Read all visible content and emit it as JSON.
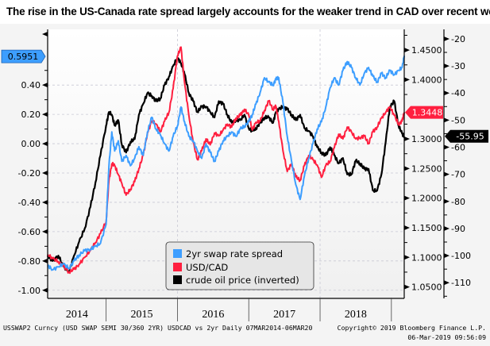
{
  "title": "The rise in the US-Canada rate spread largely accounts for the weaker trend in CAD over recent wee",
  "footer": {
    "left": "USSWAP2 Curncy (USD SWAP SEMI 30/360 2YR) USDCAD vs 2yr  Daily 07MAR2014-06MAR20",
    "copyright": "Copyright© 2019 Bloomberg Finance L.P.",
    "timestamp": "06-Mar-2019 09:56:09"
  },
  "chart_data": {
    "type": "line",
    "title": "The rise in the US-Canada rate spread largely accounts for the weaker trend in CAD over recent wee",
    "x_range": [
      2014.18,
      2019.18
    ],
    "x_tick_labels": [
      "2014",
      "2015",
      "2016",
      "2017",
      "2018"
    ],
    "grid": true,
    "legend_position": "bottom-center",
    "axes": {
      "left": {
        "label": "2yr swap rate spread",
        "ylim": [
          -1.05,
          0.78
        ],
        "ticks": [
          "0.40",
          "0.20",
          "0.00",
          "-0.20",
          "-0.40",
          "-0.60",
          "-0.80",
          "-1.00"
        ],
        "tick_values": [
          0.4,
          0.2,
          0.0,
          -0.2,
          -0.4,
          -0.6,
          -0.8,
          -1.0
        ]
      },
      "middle": {
        "label": "USD/CAD",
        "ylim": [
          1.032,
          1.485
        ],
        "ticks": [
          "1.4500",
          "1.4000",
          "1.3000",
          "1.2500",
          "1.2000",
          "1.1500",
          "1.1000",
          "1.0500"
        ],
        "tick_values": [
          1.45,
          1.4,
          1.3,
          1.25,
          1.2,
          1.15,
          1.1,
          1.05
        ]
      },
      "right": {
        "label": "crude oil price (inverted)",
        "ylim": [
          -115.5,
          -16.5
        ],
        "ticks": [
          "-20",
          "-30",
          "-40",
          "-50",
          "-60",
          "-70",
          "-80",
          "-90",
          "-100",
          "-110"
        ],
        "tick_values": [
          -20,
          -30,
          -40,
          -50,
          -60,
          -70,
          -80,
          -90,
          -100,
          -110
        ]
      }
    },
    "last_value_labels": [
      {
        "series": "2yr swap rate spread",
        "value": "0.5951",
        "color": "#3d9eff",
        "axis": "left"
      },
      {
        "series": "USD/CAD",
        "value": "1.3448",
        "color": "#ff1f3f",
        "axis": "middle"
      },
      {
        "series": "crude oil price (inverted)",
        "value": "-55.95",
        "color": "#000000",
        "axis": "right"
      }
    ],
    "series": [
      {
        "name": "2yr swap rate spread",
        "color": "#3d9eff",
        "axis": "left",
        "x": [
          2014.18,
          2014.25,
          2014.33,
          2014.4,
          2014.48,
          2014.55,
          2014.62,
          2014.7,
          2014.78,
          2014.85,
          2014.92,
          2015.0,
          2015.04,
          2015.08,
          2015.12,
          2015.17,
          2015.22,
          2015.28,
          2015.34,
          2015.4,
          2015.46,
          2015.52,
          2015.58,
          2015.64,
          2015.7,
          2015.76,
          2015.82,
          2015.88,
          2015.94,
          2016.0,
          2016.05,
          2016.1,
          2016.16,
          2016.22,
          2016.28,
          2016.34,
          2016.4,
          2016.46,
          2016.52,
          2016.58,
          2016.64,
          2016.7,
          2016.76,
          2016.82,
          2016.88,
          2016.94,
          2017.0,
          2017.05,
          2017.1,
          2017.16,
          2017.22,
          2017.28,
          2017.34,
          2017.38,
          2017.42,
          2017.48,
          2017.54,
          2017.6,
          2017.66,
          2017.72,
          2017.78,
          2017.84,
          2017.9,
          2017.96,
          2018.02,
          2018.08,
          2018.14,
          2018.2,
          2018.26,
          2018.32,
          2018.38,
          2018.44,
          2018.5,
          2018.56,
          2018.62,
          2018.68,
          2018.74,
          2018.8,
          2018.86,
          2018.92,
          2018.98,
          2019.04,
          2019.1,
          2019.15,
          2019.18
        ],
        "values": [
          -0.83,
          -0.86,
          -0.84,
          -0.82,
          -0.85,
          -0.8,
          -0.76,
          -0.73,
          -0.72,
          -0.7,
          -0.68,
          -0.55,
          -0.15,
          0.08,
          -0.05,
          0.02,
          -0.12,
          -0.08,
          -0.15,
          -0.1,
          -0.02,
          -0.08,
          0.08,
          0.18,
          0.1,
          0.06,
          0.0,
          -0.05,
          0.05,
          0.12,
          0.25,
          0.15,
          0.05,
          0.02,
          -0.05,
          -0.1,
          0.0,
          -0.06,
          -0.12,
          -0.05,
          0.02,
          0.05,
          0.08,
          0.05,
          0.1,
          0.12,
          0.15,
          0.2,
          0.27,
          0.35,
          0.45,
          0.42,
          0.4,
          0.44,
          0.45,
          0.28,
          0.05,
          -0.12,
          -0.28,
          -0.38,
          -0.22,
          -0.1,
          0.0,
          0.1,
          0.15,
          0.25,
          0.38,
          0.45,
          0.4,
          0.5,
          0.56,
          0.52,
          0.45,
          0.4,
          0.48,
          0.52,
          0.46,
          0.42,
          0.48,
          0.45,
          0.5,
          0.47,
          0.5,
          0.52,
          0.6
        ]
      },
      {
        "name": "USD/CAD",
        "color": "#ff1f3f",
        "axis": "middle",
        "x": [
          2014.18,
          2014.25,
          2014.33,
          2014.4,
          2014.48,
          2014.55,
          2014.62,
          2014.7,
          2014.78,
          2014.85,
          2014.92,
          2015.0,
          2015.04,
          2015.08,
          2015.12,
          2015.17,
          2015.22,
          2015.28,
          2015.34,
          2015.4,
          2015.46,
          2015.52,
          2015.58,
          2015.64,
          2015.7,
          2015.76,
          2015.82,
          2015.88,
          2015.94,
          2016.0,
          2016.05,
          2016.1,
          2016.16,
          2016.22,
          2016.28,
          2016.34,
          2016.4,
          2016.46,
          2016.52,
          2016.58,
          2016.64,
          2016.7,
          2016.76,
          2016.82,
          2016.88,
          2016.94,
          2017.0,
          2017.05,
          2017.1,
          2017.16,
          2017.22,
          2017.28,
          2017.34,
          2017.38,
          2017.42,
          2017.48,
          2017.54,
          2017.6,
          2017.66,
          2017.72,
          2017.78,
          2017.84,
          2017.9,
          2017.96,
          2018.02,
          2018.08,
          2018.14,
          2018.2,
          2018.26,
          2018.32,
          2018.38,
          2018.44,
          2018.5,
          2018.56,
          2018.62,
          2018.68,
          2018.74,
          2018.8,
          2018.86,
          2018.92,
          2018.98,
          2019.04,
          2019.1,
          2019.15,
          2019.18
        ],
        "values": [
          1.105,
          1.098,
          1.093,
          1.085,
          1.075,
          1.08,
          1.088,
          1.1,
          1.112,
          1.125,
          1.14,
          1.16,
          1.23,
          1.258,
          1.255,
          1.24,
          1.225,
          1.205,
          1.215,
          1.228,
          1.25,
          1.272,
          1.31,
          1.33,
          1.325,
          1.312,
          1.33,
          1.345,
          1.385,
          1.44,
          1.455,
          1.395,
          1.34,
          1.295,
          1.265,
          1.28,
          1.3,
          1.29,
          1.31,
          1.305,
          1.315,
          1.325,
          1.32,
          1.335,
          1.34,
          1.35,
          1.34,
          1.315,
          1.328,
          1.33,
          1.348,
          1.364,
          1.35,
          1.355,
          1.33,
          1.28,
          1.245,
          1.258,
          1.236,
          1.23,
          1.255,
          1.272,
          1.265,
          1.256,
          1.235,
          1.255,
          1.262,
          1.285,
          1.308,
          1.3,
          1.32,
          1.312,
          1.3,
          1.302,
          1.305,
          1.292,
          1.312,
          1.32,
          1.335,
          1.345,
          1.354,
          1.34,
          1.325,
          1.33,
          1.345
        ]
      },
      {
        "name": "crude oil price (inverted)",
        "color": "#000000",
        "axis": "right",
        "x": [
          2014.18,
          2014.25,
          2014.33,
          2014.4,
          2014.48,
          2014.55,
          2014.62,
          2014.7,
          2014.78,
          2014.85,
          2014.92,
          2015.0,
          2015.04,
          2015.08,
          2015.12,
          2015.17,
          2015.22,
          2015.28,
          2015.34,
          2015.4,
          2015.46,
          2015.52,
          2015.58,
          2015.64,
          2015.7,
          2015.76,
          2015.82,
          2015.88,
          2015.94,
          2016.0,
          2016.05,
          2016.1,
          2016.16,
          2016.22,
          2016.28,
          2016.34,
          2016.4,
          2016.46,
          2016.52,
          2016.58,
          2016.64,
          2016.7,
          2016.76,
          2016.82,
          2016.88,
          2016.94,
          2017.0,
          2017.05,
          2017.1,
          2017.16,
          2017.22,
          2017.28,
          2017.34,
          2017.38,
          2017.42,
          2017.48,
          2017.54,
          2017.6,
          2017.66,
          2017.72,
          2017.78,
          2017.84,
          2017.9,
          2017.96,
          2018.02,
          2018.08,
          2018.14,
          2018.2,
          2018.26,
          2018.32,
          2018.38,
          2018.44,
          2018.5,
          2018.56,
          2018.62,
          2018.68,
          2018.74,
          2018.8,
          2018.86,
          2018.92,
          2018.98,
          2019.04,
          2019.1,
          2019.15,
          2019.18
        ],
        "values": [
          -100,
          -102,
          -100,
          -104,
          -106,
          -100,
          -95,
          -90,
          -82,
          -73,
          -63,
          -52,
          -47,
          -48,
          -52,
          -50,
          -59,
          -62,
          -58,
          -57,
          -48,
          -44,
          -40,
          -41,
          -43,
          -42,
          -37,
          -34,
          -30,
          -27,
          -29,
          -33,
          -40,
          -43,
          -47,
          -45,
          -45,
          -47,
          -49,
          -43,
          -44,
          -48,
          -51,
          -50,
          -50,
          -48,
          -53,
          -54,
          -53,
          -51,
          -49,
          -49,
          -51,
          -47,
          -46,
          -45,
          -46,
          -48,
          -50,
          -48,
          -53,
          -54,
          -56,
          -60,
          -62,
          -63,
          -60,
          -63,
          -66,
          -64,
          -70,
          -70,
          -65,
          -66,
          -68,
          -68,
          -76,
          -76,
          -70,
          -58,
          -45,
          -43,
          -52,
          -55,
          -56
        ]
      }
    ]
  }
}
